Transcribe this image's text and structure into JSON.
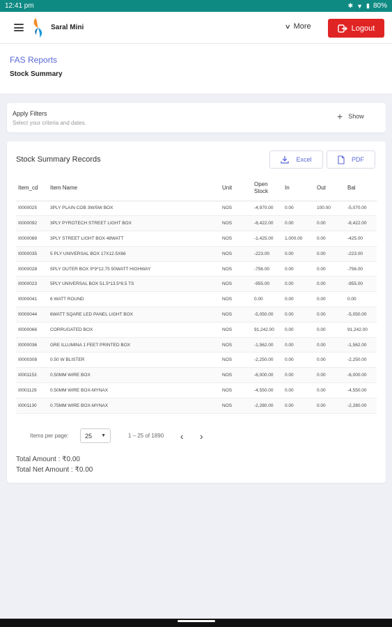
{
  "status_bar": {
    "time": "12:41 pm",
    "battery": "80%",
    "icons": [
      "bluetooth-icon",
      "wifi-icon",
      "battery-icon"
    ]
  },
  "app": {
    "title": "Saral Mini",
    "more_label": "More",
    "logout_label": "Logout",
    "brand_color": "#e02424"
  },
  "breadcrumb": {
    "parent": "FAS Reports",
    "current": "Stock Summary"
  },
  "filters": {
    "title": "Apply Filters",
    "subtitle": "Select your criteria and dates.",
    "show_label": "Show"
  },
  "records": {
    "title": "Stock Summary Records",
    "excel_label": "Excel",
    "pdf_label": "PDF",
    "columns": [
      "Item_cd",
      "Item Name",
      "Unit",
      "Open Stock",
      "In",
      "Out",
      "Bal"
    ],
    "rows": [
      [
        "I0000025",
        "3PLY PLAIN COB 3W/5W BOX",
        "NOS",
        "-4,970.00",
        "0.00",
        "100.00",
        "-5,070.00"
      ],
      [
        "I0000092",
        "3PLY PYROTECH STREET LIGHT BOX",
        "NOS",
        "-8,422.00",
        "0.00",
        "0.00",
        "-8,422.00"
      ],
      [
        "I0000089",
        "3PLY STREET LIGHT BOX 48WATT",
        "NOS",
        "-1,425.00",
        "1,000.00",
        "0.00",
        "-425.00"
      ],
      [
        "I0000035",
        "5 PLY UNIVERSAL BOX 17X12.5X66",
        "NOS",
        "-223.00",
        "0.00",
        "0.00",
        "-223.00"
      ],
      [
        "I0000028",
        "5PLY OUTER BOX 9*9*12.75 50WATT HIGHWAY",
        "NOS",
        "-756.00",
        "0.00",
        "0.00",
        "-756.00"
      ],
      [
        "I0000023",
        "5PLY UNIVERSAL BOX 51.5*13.5*8.5 TS",
        "NOS",
        "-955.00",
        "0.00",
        "0.00",
        "-955.00"
      ],
      [
        "I0000041",
        "6 WATT ROUND",
        "NOS",
        "0.00",
        "0.00",
        "0.00",
        "0.00"
      ],
      [
        "I0000044",
        "6WATT SQARE LED PANEL LIGHT BOX",
        "NOS",
        "-5,050.00",
        "0.00",
        "0.00",
        "-5,050.00"
      ],
      [
        "I0000066",
        "CORRUGATED BOX",
        "NOS",
        "91,242.00",
        "0.00",
        "0.00",
        "91,242.00"
      ],
      [
        "I0000036",
        "GRE ILLUMINA 1 FEET PRINTED BOX",
        "NOS",
        "-1,562.00",
        "0.00",
        "0.00",
        "-1,562.00"
      ],
      [
        "I0000308",
        "0.50 W BLISTER",
        "NOS",
        "-2,250.00",
        "0.00",
        "0.00",
        "-2,250.00"
      ],
      [
        "I0001153",
        "0.50MM WIRE BOX",
        "NOS",
        "-6,000.00",
        "0.00",
        "0.00",
        "-6,000.00"
      ],
      [
        "I0001129",
        "0.50MM WIRE BOX-MYNAX",
        "NOS",
        "-4,550.00",
        "0.00",
        "0.00",
        "-4,550.00"
      ],
      [
        "I0001130",
        "0.75MM WIRE BOX-MYNAX",
        "NOS",
        "-2,280.00",
        "0.00",
        "0.00",
        "-2,280.00"
      ]
    ]
  },
  "pagination": {
    "items_per_page_label": "Items per page:",
    "page_size": "25",
    "range": "1 – 25 of 1890"
  },
  "totals": {
    "total_amount": "Total Amount : ₹0.00",
    "total_net_amount": "Total Net Amount : ₹0.00"
  }
}
